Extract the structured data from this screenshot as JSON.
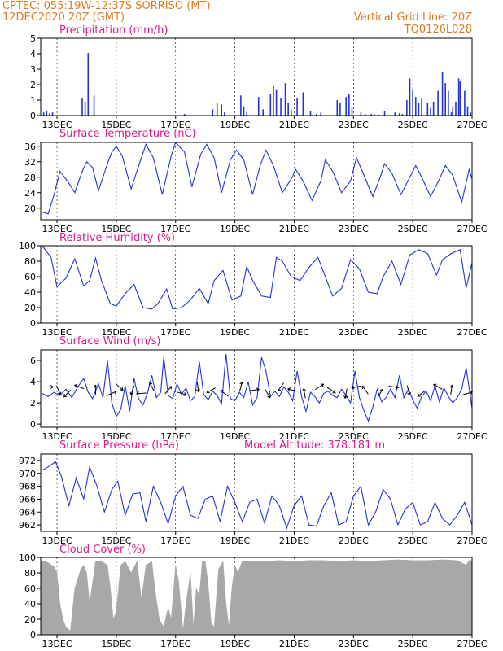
{
  "header": {
    "station": "CPTEC:   055:19W-12:37S   SORRISO (MT)",
    "date": "12DEC2020 20Z (GMT)",
    "grid_note": "Vertical Grid Line: 20Z",
    "code": "TQ0126L028"
  },
  "colors": {
    "line": "#2233dd",
    "bar": "#2233dd",
    "cloud": "#a8a8a8",
    "title": "#e0188a",
    "header": "#e07a1f"
  },
  "x_axis": {
    "day_range": [
      12.45,
      27.0
    ],
    "ticks": [
      "13DEC",
      "15DEC",
      "17DEC",
      "19DEC",
      "21DEC",
      "23DEC",
      "25DEC",
      "27DEC"
    ],
    "tick_days": [
      13,
      15,
      17,
      19,
      21,
      23,
      25,
      27
    ]
  },
  "chart_data": [
    {
      "id": "precip",
      "type": "bar",
      "title": "Precipitation (mm/h)",
      "ylim": [
        0,
        5
      ],
      "yticks": [
        "0",
        "1",
        "2",
        "3",
        "4",
        "5"
      ],
      "x": [
        12.55,
        12.65,
        12.75,
        12.85,
        13.85,
        13.95,
        14.05,
        14.25,
        17.3,
        18.25,
        18.4,
        18.55,
        18.65,
        19.2,
        19.3,
        19.4,
        19.8,
        19.95,
        20.2,
        20.3,
        20.4,
        20.55,
        20.7,
        20.8,
        20.9,
        21.1,
        21.3,
        21.55,
        21.75,
        21.9,
        22.45,
        22.55,
        22.75,
        22.85,
        22.95,
        23.25,
        23.4,
        23.6,
        23.7,
        23.85,
        24.05,
        24.4,
        24.55,
        24.65,
        24.8,
        24.9,
        25.0,
        25.1,
        25.2,
        25.3,
        25.5,
        25.6,
        25.7,
        25.85,
        26.0,
        26.1,
        26.2,
        26.3,
        26.35,
        26.45,
        26.55,
        26.6,
        26.75,
        26.85,
        26.95
      ],
      "values": [
        0.2,
        0.3,
        0.15,
        0.2,
        1.1,
        0.9,
        4.05,
        1.3,
        0.1,
        0.4,
        0.8,
        0.7,
        0.2,
        1.3,
        0.6,
        0.2,
        1.2,
        0.4,
        1.4,
        1.9,
        1.7,
        1.1,
        2.1,
        0.8,
        0.4,
        1.1,
        1.5,
        0.3,
        0.1,
        0.2,
        1.0,
        0.8,
        1.2,
        1.4,
        0.5,
        0.2,
        0.1,
        0.1,
        0.1,
        0.05,
        0.3,
        0.2,
        0.15,
        0.1,
        1.0,
        2.4,
        1.7,
        1.2,
        0.8,
        1.1,
        0.8,
        0.5,
        0.9,
        1.6,
        2.8,
        2.1,
        1.6,
        0.2,
        0.6,
        0.9,
        2.4,
        2.2,
        1.6,
        0.6,
        0.2
      ]
    },
    {
      "id": "temp",
      "type": "line",
      "title": "Surface Temperature (nC)",
      "ylim": [
        17,
        37
      ],
      "yticks": [
        "20",
        "24",
        "28",
        "32",
        "36"
      ],
      "ytick_vals": [
        20,
        24,
        28,
        32,
        36
      ],
      "x": [
        12.5,
        12.7,
        12.9,
        13.1,
        13.35,
        13.6,
        13.85,
        14.0,
        14.2,
        14.4,
        14.7,
        14.85,
        15.0,
        15.2,
        15.5,
        15.8,
        16.0,
        16.25,
        16.55,
        16.85,
        17.0,
        17.3,
        17.55,
        17.85,
        18.05,
        18.3,
        18.55,
        18.85,
        19.05,
        19.3,
        19.6,
        19.85,
        20.05,
        20.3,
        20.6,
        20.9,
        21.05,
        21.3,
        21.6,
        21.9,
        22.05,
        22.3,
        22.6,
        22.9,
        23.1,
        23.3,
        23.65,
        23.9,
        24.05,
        24.3,
        24.6,
        24.9,
        25.1,
        25.3,
        25.6,
        25.9,
        26.1,
        26.35,
        26.65,
        26.9,
        27.0
      ],
      "values": [
        19.0,
        18.5,
        23.5,
        29.5,
        27.0,
        24.0,
        29.5,
        32.0,
        30.5,
        24.5,
        31.5,
        34.5,
        36.0,
        33.5,
        25.0,
        32.0,
        36.5,
        33.0,
        23.5,
        33.5,
        37.0,
        34.5,
        25.5,
        34.0,
        36.5,
        33.0,
        24.0,
        32.5,
        35.0,
        32.5,
        23.5,
        31.0,
        35.0,
        31.0,
        24.0,
        27.5,
        30.0,
        27.0,
        22.0,
        27.0,
        32.5,
        29.5,
        24.0,
        27.0,
        33.0,
        29.5,
        23.0,
        28.0,
        31.5,
        29.0,
        23.5,
        28.0,
        31.0,
        28.0,
        23.0,
        27.5,
        31.0,
        28.5,
        21.5,
        30.0,
        27.5
      ]
    },
    {
      "id": "rh",
      "type": "line",
      "title": "Relative Humidity (%)",
      "ylim": [
        0,
        100
      ],
      "yticks": [
        "0",
        "20",
        "40",
        "60",
        "80",
        "100"
      ],
      "ytick_vals": [
        0,
        20,
        40,
        60,
        80,
        100
      ],
      "x": [
        12.5,
        12.8,
        13.0,
        13.3,
        13.6,
        13.9,
        14.1,
        14.3,
        14.5,
        14.8,
        15.0,
        15.3,
        15.6,
        15.9,
        16.2,
        16.4,
        16.7,
        16.9,
        17.2,
        17.5,
        17.8,
        18.1,
        18.3,
        18.6,
        18.9,
        19.2,
        19.4,
        19.6,
        19.9,
        20.2,
        20.4,
        20.6,
        20.9,
        21.2,
        21.5,
        21.8,
        22.0,
        22.3,
        22.6,
        22.9,
        23.2,
        23.5,
        23.8,
        24.0,
        24.3,
        24.6,
        24.9,
        25.2,
        25.5,
        25.8,
        26.0,
        26.3,
        26.6,
        26.8,
        27.0
      ],
      "values": [
        100,
        85,
        47,
        58,
        83,
        48,
        55,
        84,
        55,
        25,
        22,
        38,
        50,
        20,
        18,
        25,
        44,
        18,
        20,
        30,
        45,
        25,
        55,
        68,
        30,
        35,
        73,
        55,
        35,
        33,
        85,
        80,
        60,
        55,
        72,
        85,
        65,
        35,
        45,
        82,
        70,
        40,
        38,
        60,
        80,
        50,
        88,
        95,
        90,
        62,
        82,
        90,
        95,
        45,
        78
      ]
    },
    {
      "id": "wind",
      "type": "line",
      "title": "Surface Wind (m/s)",
      "ylim": [
        -0.3,
        7
      ],
      "yticks": [
        "0",
        "2",
        "4",
        "6"
      ],
      "ytick_vals": [
        0,
        2,
        4,
        6
      ],
      "x": [
        12.5,
        12.7,
        12.9,
        13.1,
        13.3,
        13.5,
        13.7,
        13.9,
        14.05,
        14.2,
        14.4,
        14.55,
        14.7,
        14.85,
        15.0,
        15.15,
        15.3,
        15.45,
        15.6,
        15.75,
        15.9,
        16.05,
        16.2,
        16.35,
        16.5,
        16.6,
        16.75,
        16.9,
        17.05,
        17.2,
        17.35,
        17.5,
        17.65,
        17.8,
        17.95,
        18.1,
        18.25,
        18.4,
        18.55,
        18.7,
        18.85,
        19.0,
        19.15,
        19.3,
        19.45,
        19.6,
        19.75,
        19.9,
        20.05,
        20.2,
        20.35,
        20.5,
        20.65,
        20.8,
        20.95,
        21.1,
        21.25,
        21.4,
        21.55,
        21.7,
        21.85,
        22.0,
        22.15,
        22.3,
        22.45,
        22.6,
        22.75,
        22.9,
        23.05,
        23.2,
        23.35,
        23.5,
        23.65,
        23.8,
        23.95,
        24.1,
        24.25,
        24.4,
        24.55,
        24.7,
        24.85,
        25.0,
        25.15,
        25.3,
        25.45,
        25.6,
        25.75,
        25.9,
        26.05,
        26.2,
        26.35,
        26.5,
        26.65,
        26.8,
        27.0
      ],
      "values": [
        2.9,
        2.6,
        3.0,
        2.7,
        3.3,
        2.5,
        3.5,
        4.3,
        3.0,
        2.4,
        3.8,
        2.5,
        6.0,
        2.0,
        0.7,
        1.4,
        3.6,
        1.2,
        4.3,
        2.4,
        1.8,
        2.9,
        4.6,
        2.5,
        3.0,
        6.3,
        2.7,
        2.4,
        3.8,
        2.8,
        3.4,
        2.2,
        2.6,
        5.9,
        2.8,
        2.3,
        3.1,
        2.7,
        1.9,
        6.6,
        2.4,
        2.2,
        3.0,
        2.5,
        4.0,
        1.8,
        2.5,
        6.3,
        5.0,
        2.6,
        3.1,
        2.6,
        3.5,
        3.0,
        2.2,
        5.0,
        2.6,
        1.2,
        3.0,
        2.6,
        2.0,
        2.9,
        3.1,
        2.7,
        2.5,
        3.3,
        2.7,
        2.0,
        5.0,
        2.5,
        1.3,
        0.3,
        1.6,
        3.3,
        2.1,
        2.5,
        3.3,
        2.5,
        4.6,
        2.5,
        3.3,
        2.3,
        1.5,
        2.6,
        3.1,
        2.2,
        3.6,
        2.1,
        3.4,
        2.6,
        2.0,
        2.5,
        3.3,
        5.3,
        1.5
      ],
      "arrows_x": [
        12.7,
        13.05,
        13.35,
        13.75,
        14.3,
        14.85,
        15.1,
        15.55,
        15.85,
        16.2,
        16.75,
        17.2,
        17.75,
        18.2,
        18.65,
        19.2,
        19.65,
        20.1,
        20.55,
        20.95,
        21.35,
        21.85,
        22.25,
        22.75,
        23.1,
        23.4,
        23.9,
        24.35,
        24.85,
        25.3,
        25.85,
        26.3,
        26.85
      ]
    },
    {
      "id": "pres",
      "type": "line",
      "title": "Surface Pressure (hPa)",
      "subtitle": "Model Altitude: 378.181  m",
      "ylim": [
        961,
        973
      ],
      "yticks": [
        "962",
        "964",
        "966",
        "968",
        "970",
        "972"
      ],
      "ytick_vals": [
        962,
        964,
        966,
        968,
        970,
        972
      ],
      "x": [
        12.5,
        12.7,
        12.95,
        13.15,
        13.4,
        13.65,
        13.9,
        14.1,
        14.35,
        14.6,
        14.85,
        15.05,
        15.3,
        15.55,
        15.8,
        16.0,
        16.25,
        16.5,
        16.75,
        17.0,
        17.25,
        17.5,
        17.75,
        18.0,
        18.25,
        18.5,
        18.75,
        19.0,
        19.25,
        19.5,
        19.75,
        20.0,
        20.25,
        20.5,
        20.75,
        21.0,
        21.25,
        21.5,
        21.75,
        22.0,
        22.25,
        22.5,
        22.75,
        23.0,
        23.25,
        23.5,
        23.75,
        24.0,
        24.25,
        24.5,
        24.75,
        25.0,
        25.25,
        25.5,
        25.75,
        26.0,
        26.25,
        26.5,
        26.75,
        27.0
      ],
      "values": [
        970.5,
        971.0,
        971.8,
        969.5,
        965.0,
        969.3,
        966.0,
        971.0,
        968.0,
        964.0,
        967.5,
        968.8,
        963.5,
        966.8,
        967.0,
        962.5,
        968.0,
        965.5,
        962.2,
        966.5,
        968.0,
        963.5,
        963.0,
        966.0,
        966.5,
        962.5,
        968.0,
        965.5,
        962.5,
        965.5,
        966.0,
        962.3,
        966.5,
        965.0,
        961.5,
        965.0,
        966.5,
        962.0,
        961.8,
        965.0,
        967.0,
        962.0,
        962.5,
        966.5,
        968.0,
        962.0,
        964.0,
        967.5,
        966.0,
        962.0,
        964.5,
        965.5,
        962.0,
        962.5,
        965.5,
        963.0,
        962.0,
        963.5,
        965.5,
        962.0
      ]
    },
    {
      "id": "cloud",
      "type": "area",
      "title": "Cloud Cover (%)",
      "ylim": [
        0,
        100
      ],
      "yticks": [
        "0",
        "20",
        "40",
        "60",
        "80",
        "100"
      ],
      "ytick_vals": [
        0,
        20,
        40,
        60,
        80,
        100
      ],
      "x": [
        12.45,
        12.6,
        12.75,
        12.9,
        13.0,
        13.1,
        13.2,
        13.3,
        13.45,
        13.6,
        13.8,
        13.9,
        14.0,
        14.1,
        14.3,
        14.5,
        14.7,
        14.8,
        14.9,
        15.0,
        15.15,
        15.3,
        15.5,
        15.7,
        15.85,
        16.0,
        16.2,
        16.3,
        16.45,
        16.6,
        16.75,
        16.85,
        17.0,
        17.1,
        17.25,
        17.35,
        17.5,
        17.6,
        17.7,
        17.8,
        17.9,
        18.0,
        18.1,
        18.2,
        18.3,
        18.45,
        18.6,
        18.7,
        18.8,
        18.9,
        19.0,
        19.1,
        19.25,
        19.4,
        19.6,
        20.0,
        20.5,
        21.0,
        21.5,
        22.0,
        22.5,
        23.0,
        23.5,
        24.0,
        24.5,
        25.0,
        25.5,
        26.0,
        26.5,
        26.8,
        26.9,
        27.0
      ],
      "values": [
        95,
        95,
        92,
        88,
        80,
        40,
        20,
        10,
        5,
        60,
        85,
        90,
        80,
        40,
        95,
        95,
        90,
        60,
        20,
        30,
        90,
        95,
        80,
        95,
        45,
        90,
        95,
        60,
        20,
        10,
        35,
        20,
        90,
        70,
        5,
        40,
        80,
        10,
        60,
        50,
        95,
        95,
        65,
        15,
        10,
        85,
        95,
        40,
        10,
        60,
        90,
        80,
        95,
        95,
        95,
        95,
        96,
        95,
        96,
        96,
        95,
        96,
        95,
        96,
        97,
        96,
        96,
        97,
        96,
        90,
        96,
        96
      ]
    }
  ]
}
